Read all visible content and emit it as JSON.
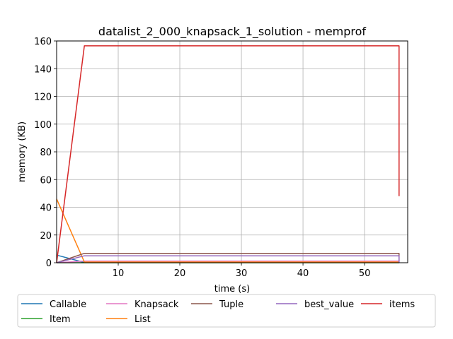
{
  "chart_data": {
    "type": "line",
    "title": "datalist_2_000_knapsack_1_solution - memprof",
    "xlabel": "time (s)",
    "ylabel": "memory (KB)",
    "xlim": [
      0,
      57
    ],
    "ylim": [
      0,
      160
    ],
    "xticks": [
      10,
      20,
      30,
      40,
      50
    ],
    "yticks": [
      0,
      20,
      40,
      60,
      80,
      100,
      120,
      140,
      160
    ],
    "grid": true,
    "legend_position": "bottom",
    "series": [
      {
        "name": "Callable",
        "color": "#1f77b4",
        "x": [
          0,
          4.5,
          55.6,
          55.6
        ],
        "y": [
          5.5,
          0.2,
          0.2,
          0.2
        ]
      },
      {
        "name": "Item",
        "color": "#2ca02c",
        "x": [
          0,
          4.5,
          55.6,
          55.6
        ],
        "y": [
          0,
          0,
          0,
          0
        ]
      },
      {
        "name": "Knapsack",
        "color": "#e377c2",
        "x": [
          0,
          4.5,
          55.6,
          55.6
        ],
        "y": [
          0,
          1.2,
          1.2,
          0
        ]
      },
      {
        "name": "List",
        "color": "#ff7f0e",
        "x": [
          0,
          4.5,
          55.6,
          55.6
        ],
        "y": [
          46,
          0.5,
          0.5,
          0
        ]
      },
      {
        "name": "Tuple",
        "color": "#8c564b",
        "x": [
          0,
          4.5,
          55.6,
          55.6
        ],
        "y": [
          0,
          6.8,
          6.8,
          0
        ]
      },
      {
        "name": "best_value",
        "color": "#9467bd",
        "x": [
          0,
          4.5,
          55.6,
          55.6
        ],
        "y": [
          0,
          5,
          5,
          0
        ]
      },
      {
        "name": "items",
        "color": "#d62728",
        "x": [
          0,
          4.5,
          55.6,
          55.6
        ],
        "y": [
          0,
          156.5,
          156.5,
          48
        ]
      }
    ]
  }
}
